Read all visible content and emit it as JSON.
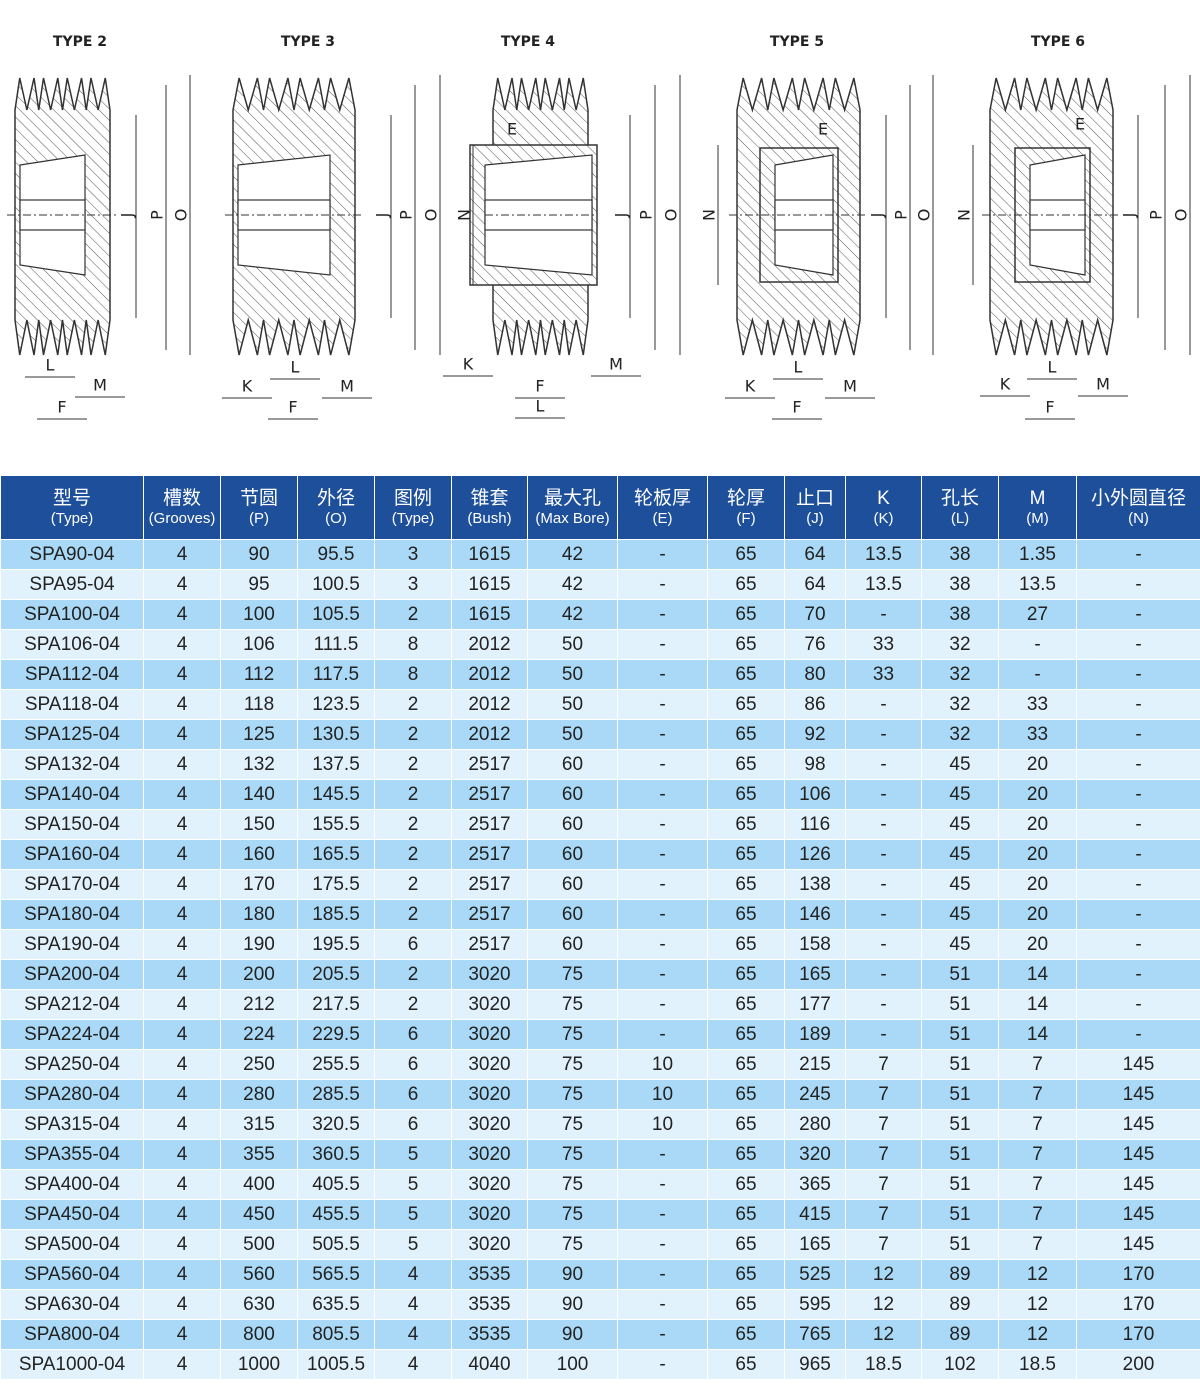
{
  "diagrams": [
    {
      "title": "TYPE 2",
      "labels": [
        "J",
        "P",
        "O",
        "L",
        "M",
        "F"
      ]
    },
    {
      "title": "TYPE 3",
      "labels": [
        "J",
        "P",
        "O",
        "K",
        "L",
        "M",
        "F"
      ]
    },
    {
      "title": "TYPE 4",
      "labels": [
        "E",
        "N",
        "J",
        "P",
        "O",
        "K",
        "M",
        "F",
        "L"
      ]
    },
    {
      "title": "TYPE 5",
      "labels": [
        "E",
        "N",
        "J",
        "P",
        "O",
        "K",
        "L",
        "M",
        "F"
      ]
    },
    {
      "title": "TYPE 6",
      "labels": [
        "E",
        "N",
        "J",
        "P",
        "O",
        "K",
        "L",
        "M",
        "F"
      ]
    }
  ],
  "table": {
    "header": [
      [
        "型号",
        "(Type)"
      ],
      [
        "槽数",
        "(Grooves)"
      ],
      [
        "节圆",
        "(P)"
      ],
      [
        "外径",
        "(O)"
      ],
      [
        "图例",
        "(Type)"
      ],
      [
        "锥套",
        "(Bush)"
      ],
      [
        "最大孔",
        "(Max Bore)"
      ],
      [
        "轮板厚",
        "(E)"
      ],
      [
        "轮厚",
        "(F)"
      ],
      [
        "止口",
        "(J)"
      ],
      [
        "K",
        "(K)"
      ],
      [
        "孔长",
        "(L)"
      ],
      [
        "M",
        "(M)"
      ],
      [
        "小外圆直径",
        "(N)"
      ]
    ],
    "rows": [
      [
        "SPA90-04",
        "4",
        "90",
        "95.5",
        "3",
        "1615",
        "42",
        "-",
        "65",
        "64",
        "13.5",
        "38",
        "1.35",
        "-"
      ],
      [
        "SPA95-04",
        "4",
        "95",
        "100.5",
        "3",
        "1615",
        "42",
        "-",
        "65",
        "64",
        "13.5",
        "38",
        "13.5",
        "-"
      ],
      [
        "SPA100-04",
        "4",
        "100",
        "105.5",
        "2",
        "1615",
        "42",
        "-",
        "65",
        "70",
        "-",
        "38",
        "27",
        "-"
      ],
      [
        "SPA106-04",
        "4",
        "106",
        "111.5",
        "8",
        "2012",
        "50",
        "-",
        "65",
        "76",
        "33",
        "32",
        "-",
        "-"
      ],
      [
        "SPA112-04",
        "4",
        "112",
        "117.5",
        "8",
        "2012",
        "50",
        "-",
        "65",
        "80",
        "33",
        "32",
        "-",
        "-"
      ],
      [
        "SPA118-04",
        "4",
        "118",
        "123.5",
        "2",
        "2012",
        "50",
        "-",
        "65",
        "86",
        "-",
        "32",
        "33",
        "-"
      ],
      [
        "SPA125-04",
        "4",
        "125",
        "130.5",
        "2",
        "2012",
        "50",
        "-",
        "65",
        "92",
        "-",
        "32",
        "33",
        "-"
      ],
      [
        "SPA132-04",
        "4",
        "132",
        "137.5",
        "2",
        "2517",
        "60",
        "-",
        "65",
        "98",
        "-",
        "45",
        "20",
        "-"
      ],
      [
        "SPA140-04",
        "4",
        "140",
        "145.5",
        "2",
        "2517",
        "60",
        "-",
        "65",
        "106",
        "-",
        "45",
        "20",
        "-"
      ],
      [
        "SPA150-04",
        "4",
        "150",
        "155.5",
        "2",
        "2517",
        "60",
        "-",
        "65",
        "116",
        "-",
        "45",
        "20",
        "-"
      ],
      [
        "SPA160-04",
        "4",
        "160",
        "165.5",
        "2",
        "2517",
        "60",
        "-",
        "65",
        "126",
        "-",
        "45",
        "20",
        "-"
      ],
      [
        "SPA170-04",
        "4",
        "170",
        "175.5",
        "2",
        "2517",
        "60",
        "-",
        "65",
        "138",
        "-",
        "45",
        "20",
        "-"
      ],
      [
        "SPA180-04",
        "4",
        "180",
        "185.5",
        "2",
        "2517",
        "60",
        "-",
        "65",
        "146",
        "-",
        "45",
        "20",
        "-"
      ],
      [
        "SPA190-04",
        "4",
        "190",
        "195.5",
        "6",
        "2517",
        "60",
        "-",
        "65",
        "158",
        "-",
        "45",
        "20",
        "-"
      ],
      [
        "SPA200-04",
        "4",
        "200",
        "205.5",
        "2",
        "3020",
        "75",
        "-",
        "65",
        "165",
        "-",
        "51",
        "14",
        "-"
      ],
      [
        "SPA212-04",
        "4",
        "212",
        "217.5",
        "2",
        "3020",
        "75",
        "-",
        "65",
        "177",
        "-",
        "51",
        "14",
        "-"
      ],
      [
        "SPA224-04",
        "4",
        "224",
        "229.5",
        "6",
        "3020",
        "75",
        "-",
        "65",
        "189",
        "-",
        "51",
        "14",
        "-"
      ],
      [
        "SPA250-04",
        "4",
        "250",
        "255.5",
        "6",
        "3020",
        "75",
        "10",
        "65",
        "215",
        "7",
        "51",
        "7",
        "145"
      ],
      [
        "SPA280-04",
        "4",
        "280",
        "285.5",
        "6",
        "3020",
        "75",
        "10",
        "65",
        "245",
        "7",
        "51",
        "7",
        "145"
      ],
      [
        "SPA315-04",
        "4",
        "315",
        "320.5",
        "6",
        "3020",
        "75",
        "10",
        "65",
        "280",
        "7",
        "51",
        "7",
        "145"
      ],
      [
        "SPA355-04",
        "4",
        "355",
        "360.5",
        "5",
        "3020",
        "75",
        "-",
        "65",
        "320",
        "7",
        "51",
        "7",
        "145"
      ],
      [
        "SPA400-04",
        "4",
        "400",
        "405.5",
        "5",
        "3020",
        "75",
        "-",
        "65",
        "365",
        "7",
        "51",
        "7",
        "145"
      ],
      [
        "SPA450-04",
        "4",
        "450",
        "455.5",
        "5",
        "3020",
        "75",
        "-",
        "65",
        "415",
        "7",
        "51",
        "7",
        "145"
      ],
      [
        "SPA500-04",
        "4",
        "500",
        "505.5",
        "5",
        "3020",
        "75",
        "-",
        "65",
        "165",
        "7",
        "51",
        "7",
        "145"
      ],
      [
        "SPA560-04",
        "4",
        "560",
        "565.5",
        "4",
        "3535",
        "90",
        "-",
        "65",
        "525",
        "12",
        "89",
        "12",
        "170"
      ],
      [
        "SPA630-04",
        "4",
        "630",
        "635.5",
        "4",
        "3535",
        "90",
        "-",
        "65",
        "595",
        "12",
        "89",
        "12",
        "170"
      ],
      [
        "SPA800-04",
        "4",
        "800",
        "805.5",
        "4",
        "3535",
        "90",
        "-",
        "65",
        "765",
        "12",
        "89",
        "12",
        "170"
      ],
      [
        "SPA1000-04",
        "4",
        "1000",
        "1005.5",
        "4",
        "4040",
        "100",
        "-",
        "65",
        "965",
        "18.5",
        "102",
        "18.5",
        "200"
      ]
    ]
  }
}
